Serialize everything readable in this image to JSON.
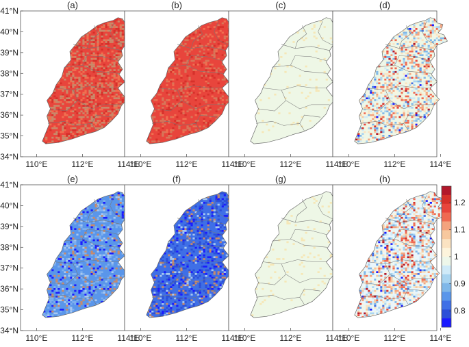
{
  "panels": [
    {
      "label": "(a)",
      "style": "red",
      "base": "#e8453c",
      "var": "#c98a6a",
      "noise": 0.45
    },
    {
      "label": "(b)",
      "style": "red",
      "base": "#e8453c",
      "var": "#d7775a",
      "noise": 0.3
    },
    {
      "label": "(c)",
      "style": "neutral",
      "base": "#eef7e6",
      "var": "#f6e7b6",
      "noise": 0.04
    },
    {
      "label": "(d)",
      "style": "mixed",
      "base": "#eef7e6",
      "var": "#a8d4f0",
      "noise": 0.6
    },
    {
      "label": "(e)",
      "style": "blue",
      "base": "#5a96ea",
      "var": "#7fb0ee",
      "noise": 0.35
    },
    {
      "label": "(f)",
      "style": "blue",
      "base": "#3f6fe6",
      "var": "#2c4fd8",
      "noise": 0.4
    },
    {
      "label": "(g)",
      "style": "neutral",
      "base": "#eef7e6",
      "var": "#f6e7b6",
      "noise": 0.04
    },
    {
      "label": "(h)",
      "style": "mixed",
      "base": "#eaf6fb",
      "var": "#a8d4f0",
      "noise": 0.65
    }
  ],
  "latitude_ticks": [
    "41°N",
    "40°N",
    "39°N",
    "38°N",
    "37°N",
    "36°N",
    "35°N",
    "34°N"
  ],
  "longitude_ticks": [
    "110°E",
    "112°E",
    "114°E"
  ],
  "colorbar": {
    "ticks": [
      "1.2",
      "1.1",
      "1",
      "0.9",
      "0.8"
    ],
    "colors": [
      "#b2182b",
      "#d6302a",
      "#e8453c",
      "#ef6a52",
      "#f4a37e",
      "#f7c89e",
      "#fbe3c2",
      "#fdf4dc",
      "#eef7ea",
      "#cfeaf8",
      "#a8d4f0",
      "#7fb7e8",
      "#5a96ea",
      "#3f6fe6",
      "#2c4fd8",
      "#1a1aff"
    ]
  }
}
